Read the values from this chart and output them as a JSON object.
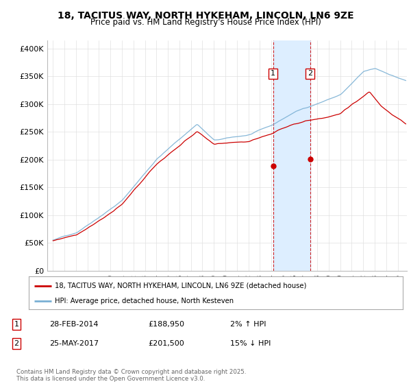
{
  "title": "18, TACITUS WAY, NORTH HYKEHAM, LINCOLN, LN6 9ZE",
  "subtitle": "Price paid vs. HM Land Registry's House Price Index (HPI)",
  "ylabel_ticks": [
    "£0",
    "£50K",
    "£100K",
    "£150K",
    "£200K",
    "£250K",
    "£300K",
    "£350K",
    "£400K"
  ],
  "ytick_values": [
    0,
    50000,
    100000,
    150000,
    200000,
    250000,
    300000,
    350000,
    400000
  ],
  "ylim": [
    0,
    415000
  ],
  "xlim_start": 1994.5,
  "xlim_end": 2025.8,
  "sale1_x": 2014.15,
  "sale1_y": 188950,
  "sale2_x": 2017.38,
  "sale2_y": 201500,
  "sale1_date": "28-FEB-2014",
  "sale1_price": "£188,950",
  "sale1_hpi": "2% ↑ HPI",
  "sale2_date": "25-MAY-2017",
  "sale2_price": "£201,500",
  "sale2_hpi": "15% ↓ HPI",
  "shade_color": "#ddeeff",
  "red_line_color": "#cc0000",
  "blue_line_color": "#7ab0d4",
  "vline_color": "#cc0000",
  "legend_line1": "18, TACITUS WAY, NORTH HYKEHAM, LINCOLN, LN6 9ZE (detached house)",
  "legend_line2": "HPI: Average price, detached house, North Kesteven",
  "footer": "Contains HM Land Registry data © Crown copyright and database right 2025.\nThis data is licensed under the Open Government Licence v3.0.",
  "background_color": "#ffffff",
  "grid_color": "#e0e0e0"
}
